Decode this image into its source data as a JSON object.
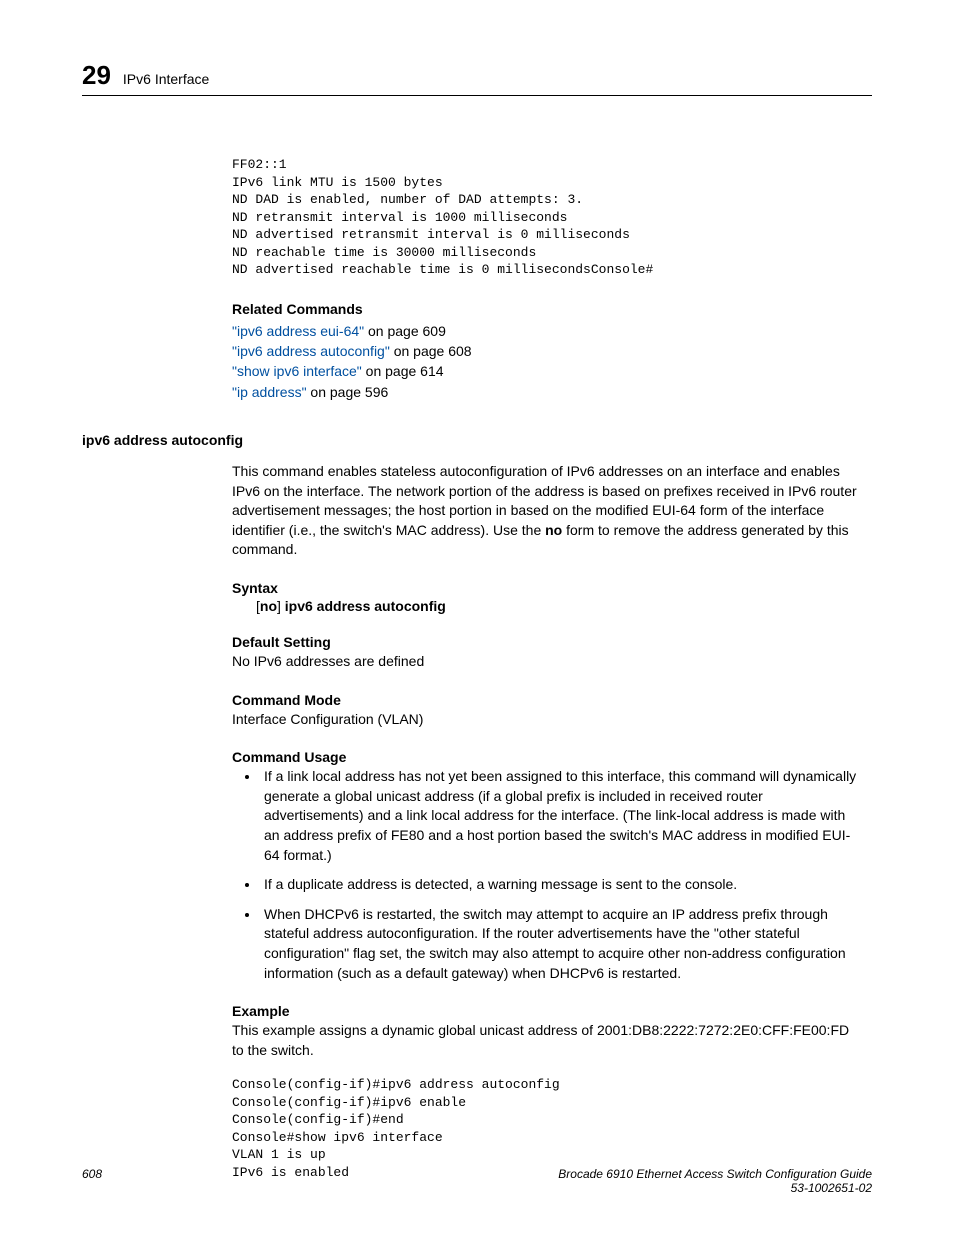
{
  "header": {
    "chapter": "29",
    "title": "IPv6 Interface"
  },
  "code_top": "FF02::1\nIPv6 link MTU is 1500 bytes\nND DAD is enabled, number of DAD attempts: 3.\nND retransmit interval is 1000 milliseconds\nND advertised retransmit interval is 0 milliseconds\nND reachable time is 30000 milliseconds\nND advertised reachable time is 0 millisecondsConsole#",
  "related": {
    "heading": "Related Commands",
    "links": [
      {
        "link": "\"ipv6 address eui-64\"",
        "suffix": " on page 609"
      },
      {
        "link": "\"ipv6 address autoconfig\"",
        "suffix": " on page 608"
      },
      {
        "link": "\"show ipv6 interface\"",
        "suffix": " on page 614"
      },
      {
        "link": "\"ip address\"",
        "suffix": " on page 596"
      }
    ]
  },
  "subsection": "ipv6 address autoconfig",
  "desc_a": "This command enables stateless autoconfiguration of IPv6 addresses on an interface and enables IPv6 on the interface. The network portion of the address is based on prefixes received in IPv6 router advertisement messages; the host portion in based on the modified EUI-64 form of the interface identifier (i.e., the switch's MAC address). Use the ",
  "desc_b": "no",
  "desc_c": " form to remove the address generated by this command.",
  "syntax": {
    "heading": "Syntax",
    "pre": "[",
    "no": "no",
    "mid": "] ",
    "cmd": "ipv6 address autoconfig"
  },
  "default_setting": {
    "heading": "Default Setting",
    "text": "No IPv6 addresses are defined"
  },
  "command_mode": {
    "heading": "Command Mode",
    "text": "Interface Configuration (VLAN)"
  },
  "command_usage": {
    "heading": "Command Usage",
    "items": [
      "If a link local address has not yet been assigned to this interface, this command will dynamically generate a global unicast address (if a global prefix is included in received router advertisements) and a link local address for the interface. (The link-local address is made with an address prefix of FE80 and a host portion based the switch's MAC address in modified EUI-64 format.)",
      "If a duplicate address is detected, a warning message is sent to the console.",
      "When DHCPv6 is restarted, the switch may attempt to acquire an IP address prefix through stateful address autoconfiguration. If the router advertisements have the \"other stateful configuration\" flag set, the switch may also attempt to acquire other non-address configuration information (such as a default gateway) when DHCPv6 is restarted."
    ]
  },
  "example": {
    "heading": "Example",
    "intro": "This example assigns a dynamic global unicast address of 2001:DB8:2222:7272:2E0:CFF:FE00:FD to the switch.",
    "code": "Console(config-if)#ipv6 address autoconfig\nConsole(config-if)#ipv6 enable\nConsole(config-if)#end\nConsole#show ipv6 interface\nVLAN 1 is up\nIPv6 is enabled"
  },
  "footer": {
    "page": "608",
    "doc": "Brocade 6910 Ethernet Access Switch Configuration Guide",
    "docnum": "53-1002651-02"
  }
}
